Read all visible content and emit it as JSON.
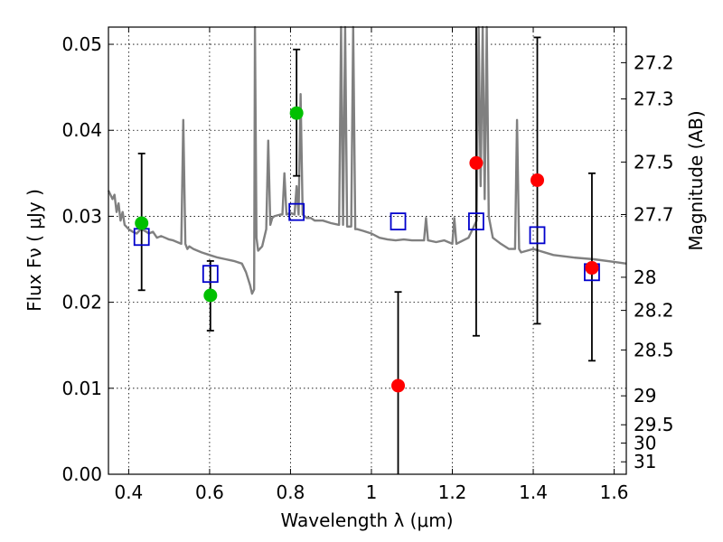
{
  "chart_data": {
    "type": "scatter",
    "xlabel": "Wavelength  λ (μm)",
    "ylabel": "Flux  Fν  ( μJy )",
    "y2label": "Magnitude (AB)",
    "xlim": [
      0.35,
      1.63
    ],
    "ylim": [
      0.0,
      0.052
    ],
    "grid": true,
    "x_ticks": [
      0.4,
      0.6,
      0.8,
      1.0,
      1.2,
      1.4,
      1.6
    ],
    "x_tick_labels": [
      "0.4",
      "0.6",
      "0.8",
      "1",
      "1.2",
      "1.4",
      "1.6"
    ],
    "y_ticks": [
      0.0,
      0.01,
      0.02,
      0.03,
      0.04,
      0.05
    ],
    "y_tick_labels": [
      "0.00",
      "0.01",
      "0.02",
      "0.03",
      "0.04",
      "0.05"
    ],
    "y2_ticks": [
      27.2,
      27.3,
      27.5,
      27.7,
      28,
      28.2,
      28.5,
      29,
      29.5,
      30,
      31
    ],
    "y2_tick_labels": [
      "27.2",
      "27.3",
      "27.5",
      "27.7",
      "28",
      "28.2",
      "28.5",
      "29",
      "29.5",
      "30",
      "31"
    ],
    "series": [
      {
        "kind": "line",
        "color": "#808080",
        "x": [
          0.35,
          0.36,
          0.365,
          0.37,
          0.375,
          0.38,
          0.385,
          0.39,
          0.4,
          0.41,
          0.42,
          0.43,
          0.44,
          0.45,
          0.46,
          0.47,
          0.48,
          0.49,
          0.5,
          0.51,
          0.52,
          0.53,
          0.535,
          0.54,
          0.545,
          0.55,
          0.56,
          0.58,
          0.6,
          0.62,
          0.64,
          0.66,
          0.68,
          0.69,
          0.7,
          0.705,
          0.71,
          0.712,
          0.716,
          0.72,
          0.73,
          0.74,
          0.745,
          0.75,
          0.755,
          0.76,
          0.775,
          0.78,
          0.785,
          0.79,
          0.8,
          0.81,
          0.815,
          0.82,
          0.825,
          0.83,
          0.84,
          0.85,
          0.86,
          0.88,
          0.9,
          0.92,
          0.925,
          0.93,
          0.935,
          0.94,
          0.95,
          0.955,
          0.96,
          0.965,
          0.98,
          1.0,
          1.02,
          1.04,
          1.06,
          1.08,
          1.1,
          1.12,
          1.13,
          1.135,
          1.14,
          1.16,
          1.18,
          1.2,
          1.205,
          1.21,
          1.24,
          1.26,
          1.265,
          1.27,
          1.275,
          1.28,
          1.285,
          1.29,
          1.3,
          1.32,
          1.34,
          1.355,
          1.36,
          1.365,
          1.37,
          1.4,
          1.45,
          1.5,
          1.55,
          1.6,
          1.63
        ],
        "y": [
          0.033,
          0.032,
          0.0325,
          0.0305,
          0.0315,
          0.0295,
          0.0305,
          0.029,
          0.0285,
          0.0282,
          0.028,
          0.0285,
          0.0283,
          0.028,
          0.0282,
          0.0275,
          0.0277,
          0.0275,
          0.0273,
          0.0272,
          0.027,
          0.0268,
          0.0412,
          0.0268,
          0.0262,
          0.0265,
          0.0262,
          0.0258,
          0.0255,
          0.0252,
          0.025,
          0.0248,
          0.0245,
          0.0235,
          0.022,
          0.021,
          0.0215,
          0.052,
          0.0275,
          0.026,
          0.0265,
          0.0285,
          0.0388,
          0.029,
          0.0298,
          0.03,
          0.0302,
          0.0302,
          0.035,
          0.0302,
          0.0304,
          0.0302,
          0.0335,
          0.0302,
          0.0442,
          0.0302,
          0.0298,
          0.0298,
          0.0295,
          0.0295,
          0.0292,
          0.029,
          0.052,
          0.029,
          0.052,
          0.0288,
          0.0288,
          0.052,
          0.0285,
          0.0285,
          0.0283,
          0.028,
          0.0275,
          0.0273,
          0.0272,
          0.0273,
          0.0272,
          0.0272,
          0.0272,
          0.0298,
          0.0272,
          0.027,
          0.0272,
          0.0268,
          0.0298,
          0.0268,
          0.0275,
          0.0295,
          0.052,
          0.0335,
          0.052,
          0.032,
          0.052,
          0.03,
          0.0275,
          0.0268,
          0.0262,
          0.0262,
          0.0412,
          0.0262,
          0.0258,
          0.0262,
          0.0255,
          0.0252,
          0.025,
          0.0247,
          0.0245
        ]
      },
      {
        "kind": "errorbar",
        "color": "#000000",
        "x": [
          0.432,
          0.602,
          0.815,
          1.066,
          1.259,
          1.41,
          1.545
        ],
        "y_low": [
          0.0214,
          0.0167,
          0.0347,
          0.0,
          0.0161,
          0.0175,
          0.0132
        ],
        "y_high": [
          0.0373,
          0.0248,
          0.0494,
          0.0212,
          0.052,
          0.0508,
          0.035
        ]
      },
      {
        "kind": "square",
        "color": "#0000cc",
        "x": [
          0.432,
          0.602,
          0.815,
          1.066,
          1.259,
          1.41,
          1.545
        ],
        "y": [
          0.0276,
          0.0233,
          0.0305,
          0.0294,
          0.0294,
          0.0278,
          0.0235
        ]
      },
      {
        "kind": "circle",
        "color": "#00c000",
        "x": [
          0.432,
          0.602,
          0.815
        ],
        "y": [
          0.0292,
          0.0208,
          0.042
        ]
      },
      {
        "kind": "circle",
        "color": "#ff0000",
        "x": [
          1.066,
          1.259,
          1.41,
          1.545
        ],
        "y": [
          0.0103,
          0.0362,
          0.0342,
          0.024
        ]
      }
    ]
  }
}
